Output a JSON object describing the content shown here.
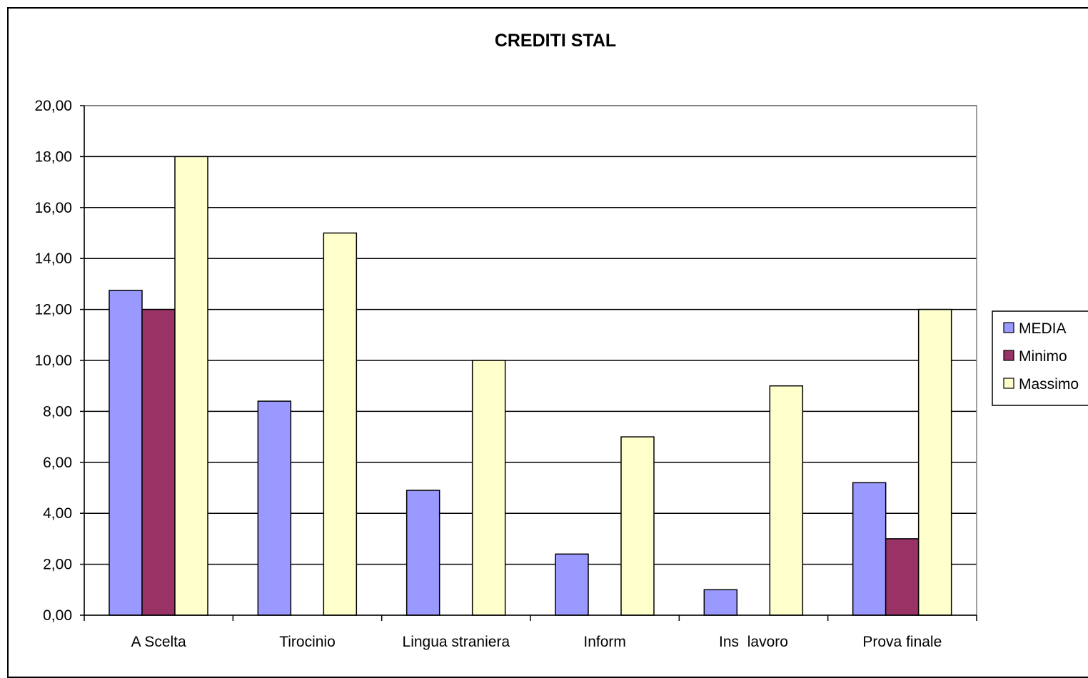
{
  "chart_data": {
    "type": "bar",
    "title": "CREDITI STAL",
    "xlabel": "",
    "ylabel": "",
    "categories": [
      "A Scelta",
      "Tirocinio",
      "Lingua straniera",
      "Inform",
      "Ins  lavoro",
      "Prova finale"
    ],
    "series": [
      {
        "name": "MEDIA",
        "color": "#9999ff",
        "values": [
          12.75,
          8.4,
          4.9,
          2.4,
          1.0,
          5.2
        ]
      },
      {
        "name": "Minimo",
        "color": "#993366",
        "values": [
          12.0,
          0,
          0,
          0,
          0,
          3.0
        ]
      },
      {
        "name": "Massimo",
        "color": "#ffffcc",
        "values": [
          18.0,
          15.0,
          10.0,
          7.0,
          9.0,
          12.0
        ]
      }
    ],
    "ylim": [
      0,
      20
    ],
    "yticks": [
      "0,00",
      "2,00",
      "4,00",
      "6,00",
      "8,00",
      "10,00",
      "12,00",
      "14,00",
      "16,00",
      "18,00",
      "20,00"
    ],
    "grid": true,
    "legend_position": "right"
  }
}
